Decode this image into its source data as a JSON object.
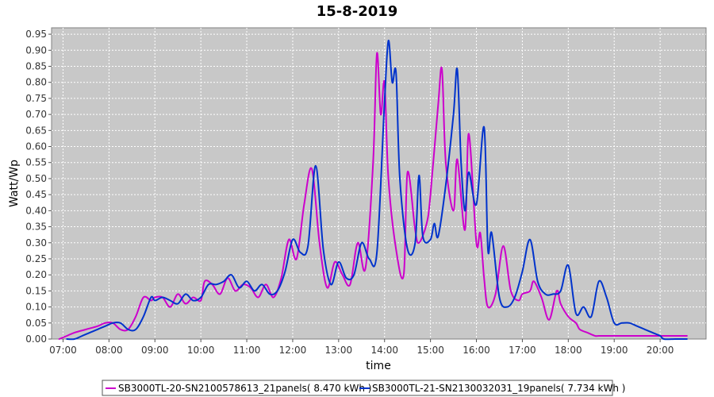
{
  "chart_data": {
    "type": "line",
    "title": "15-8-2019",
    "xlabel": "time",
    "ylabel": "Watt/Wp",
    "xlim": [
      "06:45",
      "21:00"
    ],
    "ylim": [
      0,
      0.97
    ],
    "grid": true,
    "legend_placement": "bottom",
    "x_ticks": [
      "07:00",
      "08:00",
      "09:00",
      "10:00",
      "11:00",
      "12:00",
      "13:00",
      "14:00",
      "15:00",
      "16:00",
      "17:00",
      "18:00",
      "19:00",
      "20:00"
    ],
    "y_ticks": [
      "0.00",
      "0.05",
      "0.10",
      "0.15",
      "0.20",
      "0.25",
      "0.30",
      "0.35",
      "0.40",
      "0.45",
      "0.50",
      "0.55",
      "0.60",
      "0.65",
      "0.70",
      "0.75",
      "0.80",
      "0.85",
      "0.90",
      "0.95"
    ],
    "colors": {
      "plot_background": "#c8c8c8",
      "grid": "#ffffff"
    },
    "series": [
      {
        "name": "SB3000TL-20-SN2100578613_21panels( 8.470 kWh )",
        "color": "#cc00cc",
        "x": [
          "06:55",
          "07:05",
          "07:15",
          "07:30",
          "07:45",
          "07:55",
          "08:05",
          "08:15",
          "08:25",
          "08:35",
          "08:45",
          "08:55",
          "09:00",
          "09:10",
          "09:20",
          "09:30",
          "09:40",
          "09:50",
          "10:00",
          "10:05",
          "10:15",
          "10:25",
          "10:35",
          "10:45",
          "10:55",
          "11:05",
          "11:15",
          "11:25",
          "11:35",
          "11:45",
          "11:55",
          "12:05",
          "12:15",
          "12:25",
          "12:35",
          "12:45",
          "12:55",
          "13:05",
          "13:15",
          "13:25",
          "13:35",
          "13:45",
          "13:50",
          "13:55",
          "14:00",
          "14:05",
          "14:15",
          "14:25",
          "14:30",
          "14:40",
          "14:45",
          "14:55",
          "15:00",
          "15:10",
          "15:15",
          "15:20",
          "15:30",
          "15:35",
          "15:45",
          "15:50",
          "16:00",
          "16:05",
          "16:10",
          "16:15",
          "16:25",
          "16:35",
          "16:45",
          "16:55",
          "17:00",
          "17:10",
          "17:15",
          "17:25",
          "17:35",
          "17:45",
          "17:50",
          "18:00",
          "18:10",
          "18:15",
          "18:25",
          "18:35",
          "18:40",
          "18:50",
          "19:00",
          "19:10",
          "19:20",
          "19:30",
          "19:40",
          "19:50",
          "20:00",
          "20:10",
          "20:20",
          "20:30",
          "20:35"
        ],
        "y": [
          0.0,
          0.01,
          0.02,
          0.03,
          0.04,
          0.05,
          0.05,
          0.03,
          0.03,
          0.07,
          0.13,
          0.12,
          0.13,
          0.13,
          0.1,
          0.14,
          0.11,
          0.13,
          0.12,
          0.18,
          0.17,
          0.14,
          0.19,
          0.15,
          0.17,
          0.16,
          0.13,
          0.17,
          0.13,
          0.19,
          0.31,
          0.25,
          0.42,
          0.53,
          0.3,
          0.16,
          0.24,
          0.2,
          0.17,
          0.3,
          0.22,
          0.55,
          0.89,
          0.7,
          0.8,
          0.5,
          0.28,
          0.2,
          0.52,
          0.34,
          0.3,
          0.36,
          0.45,
          0.73,
          0.84,
          0.55,
          0.4,
          0.56,
          0.34,
          0.64,
          0.3,
          0.33,
          0.19,
          0.1,
          0.14,
          0.29,
          0.15,
          0.12,
          0.14,
          0.15,
          0.18,
          0.13,
          0.06,
          0.15,
          0.11,
          0.07,
          0.05,
          0.03,
          0.02,
          0.01,
          0.01,
          0.01,
          0.01,
          0.01,
          0.01,
          0.01,
          0.01,
          0.01,
          0.01,
          0.01,
          0.01,
          0.01,
          0.01
        ]
      },
      {
        "name": "SB3000TL-21-SN2130032031_19panels( 7.734 kWh )",
        "color": "#0033cc",
        "x": [
          "07:05",
          "07:15",
          "07:25",
          "07:35",
          "07:45",
          "07:55",
          "08:05",
          "08:15",
          "08:25",
          "08:35",
          "08:45",
          "08:55",
          "09:00",
          "09:10",
          "09:20",
          "09:30",
          "09:40",
          "09:50",
          "10:00",
          "10:10",
          "10:20",
          "10:30",
          "10:40",
          "10:50",
          "11:00",
          "11:10",
          "11:20",
          "11:30",
          "11:40",
          "11:50",
          "12:00",
          "12:10",
          "12:20",
          "12:30",
          "12:40",
          "12:50",
          "13:00",
          "13:10",
          "13:20",
          "13:30",
          "13:40",
          "13:50",
          "14:00",
          "14:05",
          "14:10",
          "14:15",
          "14:20",
          "14:30",
          "14:40",
          "14:45",
          "14:50",
          "15:00",
          "15:05",
          "15:10",
          "15:20",
          "15:30",
          "15:35",
          "15:40",
          "15:45",
          "15:50",
          "16:00",
          "16:10",
          "16:15",
          "16:20",
          "16:30",
          "16:40",
          "16:50",
          "17:00",
          "17:10",
          "17:20",
          "17:30",
          "17:40",
          "17:50",
          "18:00",
          "18:10",
          "18:20",
          "18:30",
          "18:40",
          "18:50",
          "19:00",
          "19:10",
          "19:20",
          "19:30",
          "19:40",
          "19:50",
          "20:00",
          "20:05",
          "20:20",
          "20:35"
        ],
        "y": [
          0.0,
          0.0,
          0.01,
          0.02,
          0.03,
          0.04,
          0.05,
          0.05,
          0.03,
          0.03,
          0.07,
          0.13,
          0.12,
          0.13,
          0.12,
          0.11,
          0.14,
          0.12,
          0.13,
          0.17,
          0.17,
          0.18,
          0.2,
          0.16,
          0.18,
          0.15,
          0.17,
          0.14,
          0.15,
          0.21,
          0.31,
          0.27,
          0.29,
          0.54,
          0.28,
          0.17,
          0.24,
          0.19,
          0.2,
          0.3,
          0.25,
          0.27,
          0.74,
          0.93,
          0.8,
          0.83,
          0.5,
          0.28,
          0.3,
          0.51,
          0.32,
          0.31,
          0.36,
          0.32,
          0.48,
          0.7,
          0.84,
          0.55,
          0.4,
          0.52,
          0.42,
          0.66,
          0.28,
          0.33,
          0.13,
          0.1,
          0.13,
          0.21,
          0.31,
          0.18,
          0.14,
          0.14,
          0.15,
          0.23,
          0.08,
          0.1,
          0.07,
          0.18,
          0.13,
          0.05,
          0.05,
          0.05,
          0.04,
          0.03,
          0.02,
          0.01,
          0.0,
          0.0,
          0.0
        ]
      }
    ]
  }
}
